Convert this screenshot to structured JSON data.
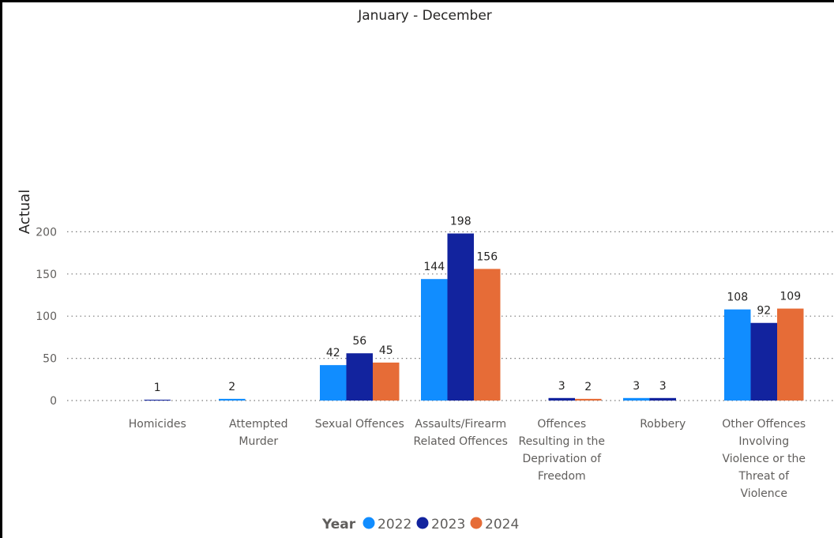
{
  "chart_data": {
    "type": "bar",
    "title": "January - December",
    "ylabel": "Actual",
    "xlabel": "",
    "ylim": [
      0,
      210
    ],
    "yticks": [
      0,
      50,
      100,
      150,
      200
    ],
    "grid": true,
    "legend_position": "bottom",
    "legend_title": "Year",
    "categories": [
      [
        "Homicides"
      ],
      [
        "Attempted",
        "Murder"
      ],
      [
        "Sexual Offences"
      ],
      [
        "Assaults/Firearm",
        "Related Offences"
      ],
      [
        "Offences",
        "Resulting in the",
        "Deprivation of",
        "Freedom"
      ],
      [
        "Robbery"
      ],
      [
        "Other Offences",
        "Involving",
        "Violence or the",
        "Threat of",
        "Violence"
      ]
    ],
    "series": [
      {
        "name": "2022",
        "color": "#118dff",
        "values": [
          null,
          2,
          42,
          144,
          null,
          3,
          108
        ]
      },
      {
        "name": "2023",
        "color": "#12239e",
        "values": [
          1,
          null,
          56,
          198,
          3,
          3,
          92
        ]
      },
      {
        "name": "2024",
        "color": "#e66c37",
        "values": [
          null,
          null,
          45,
          156,
          2,
          null,
          109
        ]
      }
    ]
  }
}
